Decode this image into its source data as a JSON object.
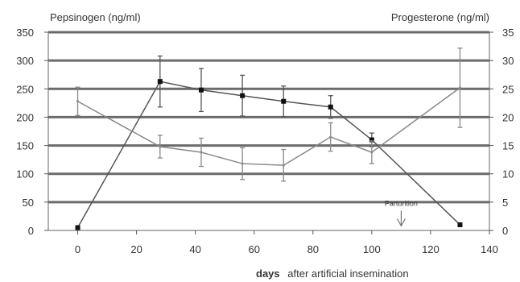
{
  "chart_data": {
    "type": "line",
    "y_left_label": "Pepsinogen (ng/ml)",
    "y_right_label": "Progesterone (ng/ml)",
    "xlabel_bold": "days",
    "xlabel_rest": "after artificial insemination",
    "x_ticks": [
      "0",
      "20",
      "40",
      "60",
      "80",
      "100",
      "120",
      "140"
    ],
    "x_tick_values": [
      0,
      20,
      40,
      60,
      80,
      100,
      120,
      140
    ],
    "y_left_ticks": [
      "0",
      "50",
      "100",
      "150",
      "200",
      "250",
      "300",
      "350"
    ],
    "y_left_tick_values": [
      0,
      50,
      100,
      150,
      200,
      250,
      300,
      350
    ],
    "y_right_ticks": [
      "0",
      "5",
      "10",
      "15",
      "20",
      "25",
      "30",
      "35"
    ],
    "xlim": [
      -10,
      140
    ],
    "ylim_left": [
      0,
      350
    ],
    "ylim_right": [
      0,
      35
    ],
    "grid": true,
    "annotation": {
      "text": "Parturition",
      "x": 110,
      "y": 38,
      "arrow_to_y": 8
    },
    "series": [
      {
        "axis": "left",
        "marker": "square",
        "color": "#555555",
        "x": [
          0,
          28,
          42,
          56,
          70,
          86,
          100,
          130
        ],
        "y": [
          5,
          263,
          248,
          238,
          228,
          218,
          160,
          10
        ],
        "err": [
          0,
          45,
          38,
          36,
          27,
          20,
          12,
          0
        ]
      },
      {
        "axis": "right",
        "marker": "none",
        "color": "#888888",
        "x": [
          0,
          28,
          42,
          56,
          70,
          86,
          100,
          130
        ],
        "y": [
          22.8,
          14.8,
          13.8,
          11.8,
          11.5,
          16.5,
          13.8,
          25.2
        ],
        "err": [
          2.5,
          2.0,
          2.5,
          2.8,
          2.8,
          2.5,
          2.0,
          7.0
        ]
      }
    ]
  }
}
